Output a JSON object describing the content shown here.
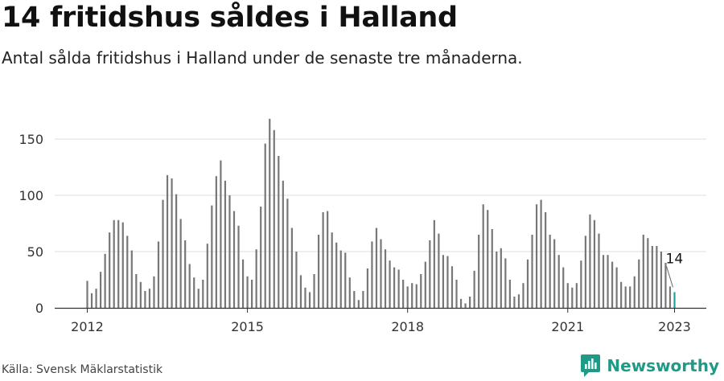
{
  "title": "14 fritidshus såldes i Halland",
  "subtitle": "Antal sålda fritidshus i Halland under de senaste tre månaderna.",
  "source": "Källa: Svensk Mäklarstatistik",
  "brand": "Newsworthy",
  "colors": {
    "bar": "#777777",
    "highlight": "#1aa39a",
    "grid": "#dddddd",
    "axis": "#333333",
    "brand": "#1f9a86"
  },
  "chart_data": {
    "type": "bar",
    "ylim": [
      0,
      175
    ],
    "yticks": [
      "0",
      "50",
      "100",
      "150"
    ],
    "xticks": [
      "2012",
      "2015",
      "2018",
      "2021",
      "2023"
    ],
    "x_start": "2012-01",
    "values": [
      24,
      13,
      17,
      32,
      48,
      67,
      78,
      78,
      76,
      64,
      51,
      30,
      23,
      15,
      17,
      28,
      59,
      96,
      118,
      115,
      101,
      79,
      60,
      39,
      27,
      17,
      25,
      57,
      91,
      117,
      131,
      113,
      100,
      86,
      73,
      43,
      28,
      25,
      52,
      90,
      146,
      168,
      158,
      135,
      113,
      97,
      71,
      50,
      29,
      18,
      14,
      30,
      65,
      85,
      86,
      67,
      58,
      51,
      49,
      27,
      15,
      7,
      15,
      35,
      59,
      71,
      61,
      52,
      42,
      36,
      34,
      25,
      19,
      22,
      21,
      30,
      41,
      60,
      78,
      66,
      47,
      46,
      37,
      25,
      8,
      4,
      10,
      33,
      65,
      92,
      87,
      70,
      50,
      53,
      44,
      25,
      10,
      12,
      22,
      43,
      65,
      92,
      96,
      85,
      65,
      61,
      47,
      36,
      22,
      18,
      22,
      42,
      64,
      83,
      78,
      66,
      47,
      47,
      41,
      36,
      23,
      19,
      19,
      28,
      43,
      65,
      62,
      55,
      55,
      50,
      40,
      19,
      14
    ],
    "highlight_last": true,
    "annotation": "14"
  }
}
